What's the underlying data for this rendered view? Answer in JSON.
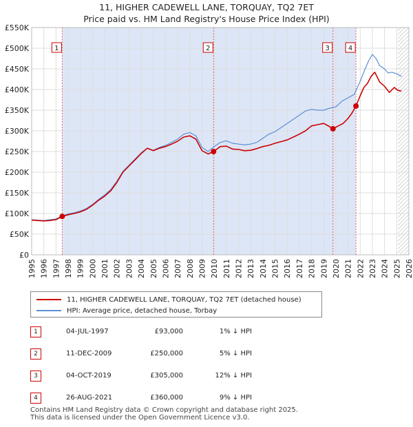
{
  "chart_data": {
    "type": "line",
    "title": "11, HIGHER CADEWELL LANE, TORQUAY, TQ2 7ET",
    "subtitle": "Price paid vs. HM Land Registry's House Price Index (HPI)",
    "xlim": [
      1995,
      2026
    ],
    "ylim": [
      0,
      550000
    ],
    "x_ticks": [
      1995,
      1996,
      1997,
      1998,
      1999,
      2000,
      2001,
      2002,
      2003,
      2004,
      2005,
      2006,
      2007,
      2008,
      2009,
      2010,
      2011,
      2012,
      2013,
      2014,
      2015,
      2016,
      2017,
      2018,
      2019,
      2020,
      2021,
      2022,
      2023,
      2024,
      2025,
      2026
    ],
    "y_ticks": [
      0,
      50000,
      100000,
      150000,
      200000,
      250000,
      300000,
      350000,
      400000,
      450000,
      500000,
      550000
    ],
    "y_tick_labels": [
      "£0",
      "£50K",
      "£100K",
      "£150K",
      "£200K",
      "£250K",
      "£300K",
      "£350K",
      "£400K",
      "£450K",
      "£500K",
      "£550K"
    ],
    "grid": true,
    "series": [
      {
        "name": "11, HIGHER CADEWELL LANE, TORQUAY, TQ2 7ET (detached house)",
        "color": "#cc0000",
        "x": [
          1995.0,
          1995.5,
          1996.0,
          1996.5,
          1997.0,
          1997.5,
          1998.0,
          1998.5,
          1999.0,
          1999.5,
          2000.0,
          2000.5,
          2001.0,
          2001.5,
          2002.0,
          2002.5,
          2003.0,
          2003.5,
          2004.0,
          2004.5,
          2005.0,
          2005.5,
          2006.0,
          2006.5,
          2007.0,
          2007.5,
          2008.0,
          2008.5,
          2009.0,
          2009.5,
          2009.95,
          2010.5,
          2011.0,
          2011.5,
          2012.0,
          2012.5,
          2013.0,
          2013.5,
          2014.0,
          2014.5,
          2015.0,
          2015.5,
          2016.0,
          2016.5,
          2017.0,
          2017.5,
          2018.0,
          2018.5,
          2019.0,
          2019.5,
          2019.76,
          2020.2,
          2020.6,
          2021.0,
          2021.3,
          2021.65,
          2022.0,
          2022.3,
          2022.6,
          2022.9,
          2023.2,
          2023.6,
          2024.0,
          2024.4,
          2024.8,
          2025.1,
          2025.4
        ],
        "values": [
          84000,
          83000,
          82000,
          83000,
          85000,
          93000,
          97000,
          100000,
          104000,
          110000,
          120000,
          132000,
          142000,
          155000,
          175000,
          200000,
          215000,
          230000,
          245000,
          258000,
          252000,
          258000,
          262000,
          268000,
          275000,
          285000,
          288000,
          280000,
          252000,
          244000,
          250000,
          262000,
          263000,
          256000,
          255000,
          252000,
          253000,
          257000,
          262000,
          265000,
          270000,
          274000,
          278000,
          285000,
          292000,
          300000,
          312000,
          315000,
          318000,
          310000,
          305000,
          312000,
          318000,
          330000,
          342000,
          360000,
          385000,
          405000,
          415000,
          432000,
          442000,
          418000,
          408000,
          393000,
          405000,
          398000,
          396000
        ]
      },
      {
        "name": "HPI: Average price, detached house, Torbay",
        "color": "#5b8fd1",
        "x": [
          1995.0,
          1995.5,
          1996.0,
          1996.5,
          1997.0,
          1997.5,
          1998.0,
          1998.5,
          1999.0,
          1999.5,
          2000.0,
          2000.5,
          2001.0,
          2001.5,
          2002.0,
          2002.5,
          2003.0,
          2003.5,
          2004.0,
          2004.5,
          2005.0,
          2005.5,
          2006.0,
          2006.5,
          2007.0,
          2007.5,
          2008.0,
          2008.5,
          2009.0,
          2009.5,
          2010.0,
          2010.5,
          2011.0,
          2011.5,
          2012.0,
          2012.5,
          2013.0,
          2013.5,
          2014.0,
          2014.5,
          2015.0,
          2015.5,
          2016.0,
          2016.5,
          2017.0,
          2017.5,
          2018.0,
          2018.5,
          2019.0,
          2019.5,
          2020.0,
          2020.5,
          2021.0,
          2021.5,
          2022.0,
          2022.4,
          2022.7,
          2023.0,
          2023.3,
          2023.6,
          2024.0,
          2024.3,
          2024.6,
          2025.0,
          2025.4
        ],
        "values": [
          85000,
          84000,
          83000,
          85000,
          87000,
          94000,
          99000,
          102000,
          106000,
          112000,
          122000,
          134000,
          145000,
          158000,
          178000,
          202000,
          217000,
          232000,
          247000,
          258000,
          253000,
          260000,
          265000,
          272000,
          280000,
          292000,
          296000,
          288000,
          260000,
          250000,
          262000,
          272000,
          276000,
          270000,
          268000,
          266000,
          268000,
          272000,
          282000,
          292000,
          298000,
          308000,
          318000,
          328000,
          338000,
          348000,
          352000,
          350000,
          350000,
          355000,
          358000,
          372000,
          380000,
          388000,
          420000,
          450000,
          470000,
          485000,
          475000,
          458000,
          450000,
          440000,
          442000,
          438000,
          432000
        ]
      }
    ],
    "transactions": [
      {
        "n": "1",
        "x": 1997.51,
        "price": 93000
      },
      {
        "n": "2",
        "x": 2009.95,
        "price": 250000
      },
      {
        "n": "3",
        "x": 2019.76,
        "price": 305000
      },
      {
        "n": "4",
        "x": 2021.65,
        "price": 360000
      }
    ],
    "shading": {
      "from": 1997.51,
      "to": 2021.65,
      "color": "#dde6f7"
    },
    "future_hatch_from": 2025.1,
    "legend_position": "below"
  },
  "legend": {
    "items": [
      {
        "label": "11, HIGHER CADEWELL LANE, TORQUAY, TQ2 7ET (detached house)",
        "color": "#cc0000"
      },
      {
        "label": "HPI: Average price, detached house, Torbay",
        "color": "#5b8fd1"
      }
    ]
  },
  "table": {
    "rows": [
      {
        "n": "1",
        "date": "04-JUL-1997",
        "price": "£93,000",
        "hpi": "1% ↓ HPI"
      },
      {
        "n": "2",
        "date": "11-DEC-2009",
        "price": "£250,000",
        "hpi": "5% ↓ HPI"
      },
      {
        "n": "3",
        "date": "04-OCT-2019",
        "price": "£305,000",
        "hpi": "12% ↓ HPI"
      },
      {
        "n": "4",
        "date": "26-AUG-2021",
        "price": "£360,000",
        "hpi": "9% ↓ HPI"
      }
    ]
  },
  "footer": {
    "line1": "Contains HM Land Registry data © Crown copyright and database right 2025.",
    "line2": "This data is licensed under the Open Government Licence v3.0."
  }
}
